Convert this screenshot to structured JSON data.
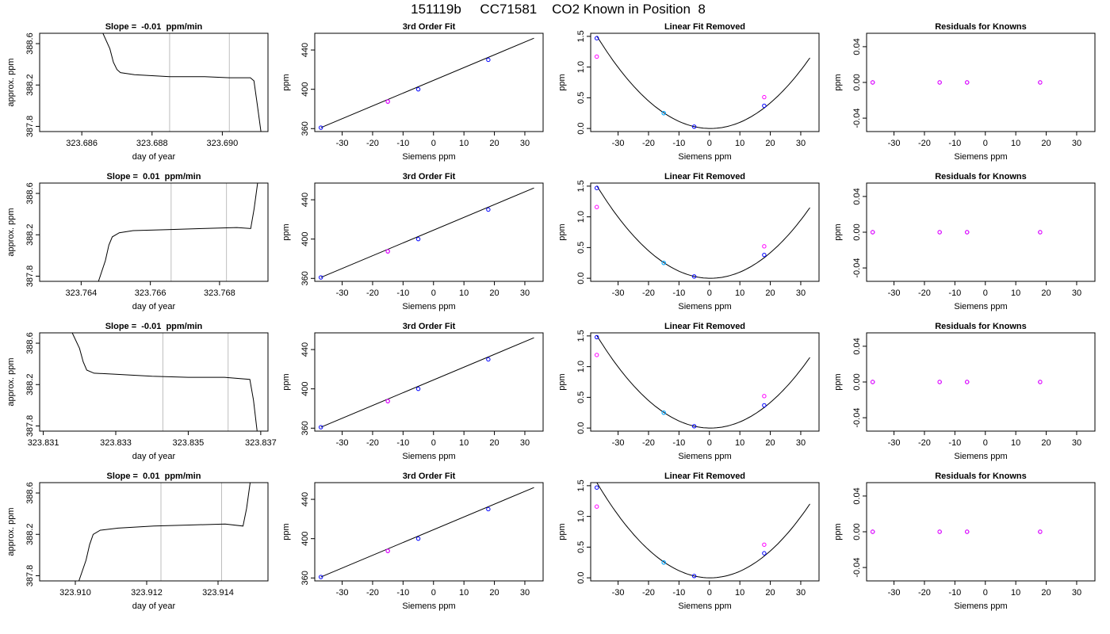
{
  "figure": {
    "title": "151119b     CC71581    CO2 Known in Position  8"
  },
  "colors": {
    "trace": "#000000",
    "guide_line": "#bebebe",
    "point_measured": "#0000ff",
    "point_alt": "#ff00ff",
    "point_fit": "#00bfff"
  },
  "chart_data": [
    {
      "type": "line",
      "row": 0,
      "title": "Slope =  -0.01  ppm/min",
      "xlabel": "day of year",
      "ylabel": "approx. ppm",
      "xlim": [
        323.6848,
        323.6913
      ],
      "ylim": [
        387.75,
        388.7
      ],
      "xticks": [
        323.686,
        323.688,
        323.69
      ],
      "xtick_labels": [
        "323.686",
        "323.688",
        "323.690"
      ],
      "yticks": [
        387.8,
        388.2,
        388.6
      ],
      "ytick_labels": [
        "387.8",
        "388.2",
        "388.6"
      ],
      "vlines": [
        323.6885,
        323.6902
      ],
      "x": [
        323.6866,
        323.6868,
        323.6869,
        323.687,
        323.6871,
        323.6875,
        323.6885,
        323.6895,
        323.6902,
        323.6908,
        323.6909,
        323.691,
        323.6911
      ],
      "y": [
        388.7,
        388.55,
        388.42,
        388.35,
        388.32,
        388.3,
        388.28,
        388.28,
        388.27,
        388.27,
        388.24,
        388.0,
        387.75
      ]
    },
    {
      "type": "scatter",
      "row": 0,
      "title": "3rd Order Fit",
      "xlabel": "Siemens ppm",
      "ylabel": "ppm",
      "xlim": [
        -39,
        36
      ],
      "ylim": [
        357,
        457
      ],
      "xticks": [
        -30,
        -20,
        -10,
        0,
        10,
        20,
        30
      ],
      "yticks": [
        360,
        400,
        440
      ],
      "line": [
        [
          -37,
          361
        ],
        [
          33,
          452
        ]
      ],
      "series": [
        {
          "name": "",
          "color_key": "point_measured",
          "x": [
            -37,
            -15,
            -5,
            18
          ],
          "y": [
            361,
            387.5,
            400,
            430
          ]
        },
        {
          "name": "",
          "color_key": "point_alt",
          "x": [
            -15
          ],
          "y": [
            387.5
          ]
        }
      ]
    },
    {
      "type": "scatter",
      "row": 0,
      "title": "Linear Fit Removed",
      "xlabel": "Siemens ppm",
      "ylabel": "ppm",
      "xlim": [
        -39,
        36
      ],
      "ylim": [
        -0.05,
        1.55
      ],
      "xticks": [
        -30,
        -20,
        -10,
        0,
        10,
        20,
        30
      ],
      "yticks": [
        0.0,
        0.5,
        1.0,
        1.5
      ],
      "ytick_labels": [
        "0.0",
        "0.5",
        "1.0",
        "1.5"
      ],
      "curve": {
        "a": 0.00108,
        "b": -0.0008,
        "c": 0,
        "x_range": [
          -37,
          33
        ]
      },
      "series": [
        {
          "name": "",
          "color_key": "point_measured",
          "x": [
            -37,
            -15,
            -5,
            18
          ],
          "y": [
            1.47,
            0.25,
            0.03,
            0.37
          ]
        },
        {
          "name": "",
          "color_key": "point_alt",
          "x": [
            -37,
            18
          ],
          "y": [
            1.17,
            0.51
          ]
        },
        {
          "name": "",
          "color_key": "point_fit",
          "x": [
            -15
          ],
          "y": [
            0.25
          ]
        }
      ]
    },
    {
      "type": "scatter",
      "row": 0,
      "title": "Residuals for Knowns",
      "xlabel": "Siemens ppm",
      "ylabel": "ppm",
      "xlim": [
        -39,
        36
      ],
      "ylim": [
        -0.055,
        0.055
      ],
      "xticks": [
        -30,
        -20,
        -10,
        0,
        10,
        20,
        30
      ],
      "yticks": [
        -0.04,
        0.0,
        0.04
      ],
      "ytick_labels": [
        "-0.04",
        "0.00",
        "0.04"
      ],
      "series": [
        {
          "name": "",
          "color_key": "point_measured",
          "x": [
            -37,
            -15,
            -6,
            18
          ],
          "y": [
            0,
            0,
            0,
            0
          ]
        },
        {
          "name": "",
          "color_key": "point_alt",
          "x": [
            -37,
            -15,
            -6,
            18
          ],
          "y": [
            0,
            0,
            0,
            0
          ]
        }
      ]
    },
    {
      "type": "line",
      "row": 1,
      "title": "Slope =  0.01  ppm/min",
      "xlabel": "day of year",
      "ylabel": "approx. ppm",
      "xlim": [
        323.7628,
        323.7694
      ],
      "ylim": [
        387.75,
        388.7
      ],
      "xticks": [
        323.764,
        323.766,
        323.768
      ],
      "xtick_labels": [
        "323.764",
        "323.766",
        "323.768"
      ],
      "yticks": [
        387.8,
        388.2,
        388.6
      ],
      "ytick_labels": [
        "387.8",
        "388.2",
        "388.6"
      ],
      "vlines": [
        323.7666,
        323.7682
      ],
      "x": [
        323.7645,
        323.7647,
        323.7648,
        323.7649,
        323.7651,
        323.7655,
        323.7665,
        323.7675,
        323.7685,
        323.7689,
        323.769,
        323.7691
      ],
      "y": [
        387.75,
        387.95,
        388.1,
        388.18,
        388.22,
        388.24,
        388.25,
        388.26,
        388.27,
        388.26,
        388.45,
        388.7
      ]
    },
    {
      "type": "scatter",
      "row": 1,
      "title": "3rd Order Fit",
      "xlabel": "Siemens ppm",
      "ylabel": "ppm",
      "xlim": [
        -39,
        36
      ],
      "ylim": [
        357,
        457
      ],
      "xticks": [
        -30,
        -20,
        -10,
        0,
        10,
        20,
        30
      ],
      "yticks": [
        360,
        400,
        440
      ],
      "line": [
        [
          -37,
          361
        ],
        [
          33,
          452
        ]
      ],
      "series": [
        {
          "name": "",
          "color_key": "point_measured",
          "x": [
            -37,
            -15,
            -5,
            18
          ],
          "y": [
            361,
            387.5,
            400,
            430
          ]
        },
        {
          "name": "",
          "color_key": "point_alt",
          "x": [
            -15
          ],
          "y": [
            387.5
          ]
        }
      ]
    },
    {
      "type": "scatter",
      "row": 1,
      "title": "Linear Fit Removed",
      "xlabel": "Siemens ppm",
      "ylabel": "ppm",
      "xlim": [
        -39,
        36
      ],
      "ylim": [
        -0.05,
        1.55
      ],
      "xticks": [
        -30,
        -20,
        -10,
        0,
        10,
        20,
        30
      ],
      "yticks": [
        0.0,
        0.5,
        1.0,
        1.5
      ],
      "ytick_labels": [
        "0.0",
        "0.5",
        "1.0",
        "1.5"
      ],
      "curve": {
        "a": 0.00108,
        "b": -0.0008,
        "c": 0,
        "x_range": [
          -37,
          33
        ]
      },
      "series": [
        {
          "name": "",
          "color_key": "point_measured",
          "x": [
            -37,
            -15,
            -5,
            18
          ],
          "y": [
            1.47,
            0.25,
            0.03,
            0.38
          ]
        },
        {
          "name": "",
          "color_key": "point_alt",
          "x": [
            -37,
            18
          ],
          "y": [
            1.16,
            0.52
          ]
        },
        {
          "name": "",
          "color_key": "point_fit",
          "x": [
            -15
          ],
          "y": [
            0.25
          ]
        }
      ]
    },
    {
      "type": "scatter",
      "row": 1,
      "title": "Residuals for Knowns",
      "xlabel": "Siemens ppm",
      "ylabel": "ppm",
      "xlim": [
        -39,
        36
      ],
      "ylim": [
        -0.055,
        0.055
      ],
      "xticks": [
        -30,
        -20,
        -10,
        0,
        10,
        20,
        30
      ],
      "yticks": [
        -0.04,
        0.0,
        0.04
      ],
      "ytick_labels": [
        "-0.04",
        "0.00",
        "0.04"
      ],
      "series": [
        {
          "name": "",
          "color_key": "point_measured",
          "x": [
            -37,
            -15,
            -6,
            18
          ],
          "y": [
            0,
            0,
            0,
            0
          ]
        },
        {
          "name": "",
          "color_key": "point_alt",
          "x": [
            -37,
            -15,
            -6,
            18
          ],
          "y": [
            0,
            0,
            0,
            0
          ]
        }
      ]
    },
    {
      "type": "line",
      "row": 2,
      "title": "Slope =  -0.01  ppm/min",
      "xlabel": "day of year",
      "ylabel": "approx. ppm",
      "xlim": [
        323.8309,
        323.8372
      ],
      "ylim": [
        387.75,
        388.7
      ],
      "xticks": [
        323.831,
        323.833,
        323.835,
        323.837
      ],
      "xtick_labels": [
        "323.831",
        "323.833",
        "323.835",
        "323.837"
      ],
      "yticks": [
        387.8,
        388.2,
        388.6
      ],
      "ytick_labels": [
        "387.8",
        "388.2",
        "388.6"
      ],
      "vlines": [
        323.8343,
        323.8361
      ],
      "x": [
        323.8318,
        323.832,
        323.8321,
        323.8322,
        323.8324,
        323.833,
        323.834,
        323.835,
        323.836,
        323.8367,
        323.8368,
        323.8369
      ],
      "y": [
        388.7,
        388.55,
        388.42,
        388.34,
        388.31,
        388.3,
        388.28,
        388.27,
        388.27,
        388.25,
        388.05,
        387.75
      ]
    },
    {
      "type": "scatter",
      "row": 2,
      "title": "3rd Order Fit",
      "xlabel": "Siemens ppm",
      "ylabel": "ppm",
      "xlim": [
        -39,
        36
      ],
      "ylim": [
        357,
        457
      ],
      "xticks": [
        -30,
        -20,
        -10,
        0,
        10,
        20,
        30
      ],
      "yticks": [
        360,
        400,
        440
      ],
      "line": [
        [
          -37,
          361
        ],
        [
          33,
          452
        ]
      ],
      "series": [
        {
          "name": "",
          "color_key": "point_measured",
          "x": [
            -37,
            -15,
            -5,
            18
          ],
          "y": [
            361,
            387.5,
            400,
            430
          ]
        },
        {
          "name": "",
          "color_key": "point_alt",
          "x": [
            -15
          ],
          "y": [
            387.5
          ]
        }
      ]
    },
    {
      "type": "scatter",
      "row": 2,
      "title": "Linear Fit Removed",
      "xlabel": "Siemens ppm",
      "ylabel": "ppm",
      "xlim": [
        -39,
        36
      ],
      "ylim": [
        -0.05,
        1.55
      ],
      "xticks": [
        -30,
        -20,
        -10,
        0,
        10,
        20,
        30
      ],
      "yticks": [
        0.0,
        0.5,
        1.0,
        1.5
      ],
      "ytick_labels": [
        "0.0",
        "0.5",
        "1.0",
        "1.5"
      ],
      "curve": {
        "a": 0.00108,
        "b": -0.0008,
        "c": 0,
        "x_range": [
          -37,
          33
        ]
      },
      "series": [
        {
          "name": "",
          "color_key": "point_measured",
          "x": [
            -37,
            -15,
            -5,
            18
          ],
          "y": [
            1.48,
            0.25,
            0.03,
            0.37
          ]
        },
        {
          "name": "",
          "color_key": "point_alt",
          "x": [
            -37,
            18
          ],
          "y": [
            1.19,
            0.52
          ]
        },
        {
          "name": "",
          "color_key": "point_fit",
          "x": [
            -15
          ],
          "y": [
            0.25
          ]
        }
      ]
    },
    {
      "type": "scatter",
      "row": 2,
      "title": "Residuals for Knowns",
      "xlabel": "Siemens ppm",
      "ylabel": "ppm",
      "xlim": [
        -39,
        36
      ],
      "ylim": [
        -0.055,
        0.055
      ],
      "xticks": [
        -30,
        -20,
        -10,
        0,
        10,
        20,
        30
      ],
      "yticks": [
        -0.04,
        0.0,
        0.04
      ],
      "ytick_labels": [
        "-0.04",
        "0.00",
        "0.04"
      ],
      "series": [
        {
          "name": "",
          "color_key": "point_measured",
          "x": [
            -37,
            -15,
            -6,
            18
          ],
          "y": [
            0,
            0,
            0,
            0
          ]
        },
        {
          "name": "",
          "color_key": "point_alt",
          "x": [
            -37,
            -15,
            -6,
            18
          ],
          "y": [
            0,
            0,
            0,
            0
          ]
        }
      ]
    },
    {
      "type": "line",
      "row": 3,
      "title": "Slope =  0.01  ppm/min",
      "xlabel": "day of year",
      "ylabel": "approx. ppm",
      "xlim": [
        323.909,
        323.9154
      ],
      "ylim": [
        387.75,
        388.7
      ],
      "xticks": [
        323.91,
        323.912,
        323.914
      ],
      "xtick_labels": [
        "323.910",
        "323.912",
        "323.914"
      ],
      "yticks": [
        387.8,
        388.2,
        388.6
      ],
      "ytick_labels": [
        "387.8",
        "388.2",
        "388.6"
      ],
      "vlines": [
        323.9124,
        323.9141
      ],
      "x": [
        323.9101,
        323.9103,
        323.9104,
        323.9105,
        323.9107,
        323.9112,
        323.9122,
        323.9132,
        323.9142,
        323.9147,
        323.9148,
        323.9149
      ],
      "y": [
        387.75,
        387.95,
        388.1,
        388.2,
        388.24,
        388.26,
        388.28,
        388.29,
        388.3,
        388.28,
        388.45,
        388.7
      ]
    },
    {
      "type": "scatter",
      "row": 3,
      "title": "3rd Order Fit",
      "xlabel": "Siemens ppm",
      "ylabel": "ppm",
      "xlim": [
        -39,
        36
      ],
      "ylim": [
        357,
        457
      ],
      "xticks": [
        -30,
        -20,
        -10,
        0,
        10,
        20,
        30
      ],
      "yticks": [
        360,
        400,
        440
      ],
      "line": [
        [
          -37,
          361
        ],
        [
          33,
          452
        ]
      ],
      "series": [
        {
          "name": "",
          "color_key": "point_measured",
          "x": [
            -37,
            -15,
            -5,
            18
          ],
          "y": [
            361,
            387.5,
            400,
            430
          ]
        },
        {
          "name": "",
          "color_key": "point_alt",
          "x": [
            -15
          ],
          "y": [
            387.5
          ]
        }
      ]
    },
    {
      "type": "scatter",
      "row": 3,
      "title": "Linear Fit Removed",
      "xlabel": "Siemens ppm",
      "ylabel": "ppm",
      "xlim": [
        -39,
        36
      ],
      "ylim": [
        -0.05,
        1.55
      ],
      "xticks": [
        -30,
        -20,
        -10,
        0,
        10,
        20,
        30
      ],
      "yticks": [
        0.0,
        0.5,
        1.0,
        1.5
      ],
      "ytick_labels": [
        "0.0",
        "0.5",
        "1.0",
        "1.5"
      ],
      "curve": {
        "a": 0.00112,
        "b": -0.0005,
        "c": 0,
        "x_range": [
          -37,
          33
        ]
      },
      "series": [
        {
          "name": "",
          "color_key": "point_measured",
          "x": [
            -37,
            -15,
            -5,
            18
          ],
          "y": [
            1.47,
            0.25,
            0.03,
            0.4
          ]
        },
        {
          "name": "",
          "color_key": "point_alt",
          "x": [
            -37,
            18
          ],
          "y": [
            1.16,
            0.54
          ]
        },
        {
          "name": "",
          "color_key": "point_fit",
          "x": [
            -15
          ],
          "y": [
            0.25
          ]
        }
      ]
    },
    {
      "type": "scatter",
      "row": 3,
      "title": "Residuals for Knowns",
      "xlabel": "Siemens ppm",
      "ylabel": "ppm",
      "xlim": [
        -39,
        36
      ],
      "ylim": [
        -0.055,
        0.055
      ],
      "xticks": [
        -30,
        -20,
        -10,
        0,
        10,
        20,
        30
      ],
      "yticks": [
        -0.04,
        0.0,
        0.04
      ],
      "ytick_labels": [
        "-0.04",
        "0.00",
        "0.04"
      ],
      "series": [
        {
          "name": "",
          "color_key": "point_measured",
          "x": [
            -37,
            -15,
            -6,
            18
          ],
          "y": [
            0,
            0,
            0,
            0
          ]
        },
        {
          "name": "",
          "color_key": "point_alt",
          "x": [
            -37,
            -15,
            -6,
            18
          ],
          "y": [
            0,
            0,
            0,
            0
          ]
        }
      ]
    }
  ]
}
